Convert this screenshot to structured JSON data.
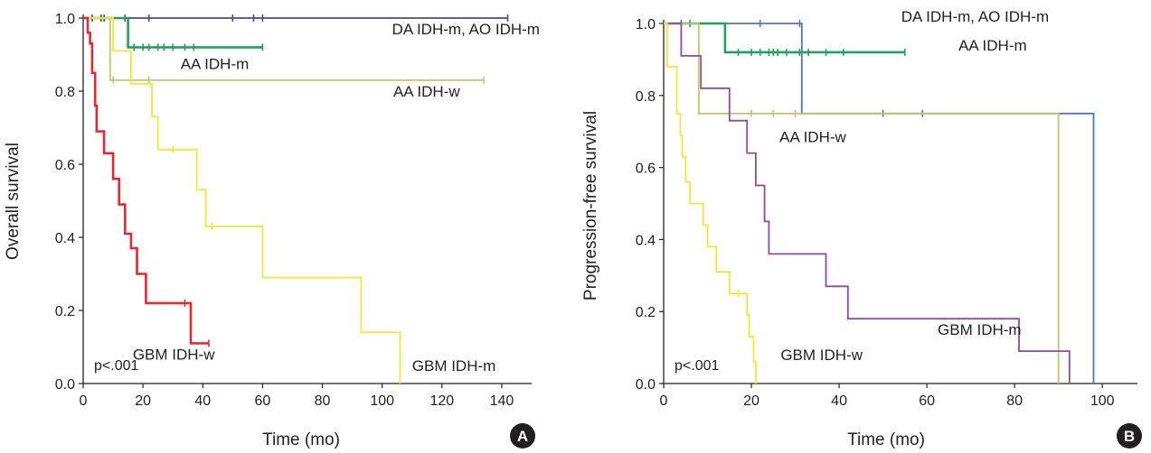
{
  "chart_data": [
    {
      "type": "line",
      "panel_label": "A",
      "xlabel": "Time (mo)",
      "ylabel": "Overall survival",
      "xlim": [
        0,
        150
      ],
      "ylim": [
        0,
        1.0
      ],
      "x_ticks": [
        0,
        20,
        40,
        60,
        80,
        100,
        120,
        140
      ],
      "y_ticks": [
        0.0,
        0.2,
        0.4,
        0.6,
        0.8,
        1.0
      ],
      "annotation": "p<.001",
      "series": [
        {
          "name": "DA IDH-m, AO IDH-m",
          "color": "#5b3f98",
          "steps": [
            [
              0,
              1.0
            ],
            [
              142,
              1.0
            ]
          ],
          "censor": [
            3,
            6,
            7,
            14,
            22,
            50,
            57,
            60,
            142
          ]
        },
        {
          "name": "AA IDH-m",
          "color": "#20a25a",
          "steps": [
            [
              0,
              1.0
            ],
            [
              15,
              1.0
            ],
            [
              15,
              0.92
            ],
            [
              60,
              0.92
            ]
          ],
          "censor": [
            17,
            20,
            22,
            25,
            27,
            30,
            34,
            37,
            60
          ]
        },
        {
          "name": "AA IDH-w",
          "color": "#c3c768",
          "steps": [
            [
              0,
              1.0
            ],
            [
              9,
              1.0
            ],
            [
              9,
              0.83
            ],
            [
              134,
              0.83
            ]
          ],
          "censor": [
            10,
            22,
            134
          ]
        },
        {
          "name": "GBM IDH-m",
          "color": "#f4e53a",
          "steps": [
            [
              0,
              1.0
            ],
            [
              10,
              1.0
            ],
            [
              10,
              0.91
            ],
            [
              16,
              0.91
            ],
            [
              16,
              0.82
            ],
            [
              23,
              0.82
            ],
            [
              23,
              0.73
            ],
            [
              25,
              0.73
            ],
            [
              25,
              0.64
            ],
            [
              38,
              0.64
            ],
            [
              38,
              0.53
            ],
            [
              41,
              0.53
            ],
            [
              41,
              0.43
            ],
            [
              60,
              0.43
            ],
            [
              60,
              0.29
            ],
            [
              93,
              0.29
            ],
            [
              93,
              0.14
            ],
            [
              106,
              0.14
            ],
            [
              106,
              0.0
            ]
          ],
          "censor": [
            30,
            43
          ]
        },
        {
          "name": "GBM IDH-w",
          "color": "#df2b34",
          "steps": [
            [
              0,
              1.0
            ],
            [
              1.5,
              1.0
            ],
            [
              1.5,
              0.96
            ],
            [
              2.3,
              0.96
            ],
            [
              2.3,
              0.93
            ],
            [
              3,
              0.93
            ],
            [
              3,
              0.85
            ],
            [
              4,
              0.85
            ],
            [
              4,
              0.76
            ],
            [
              4.5,
              0.76
            ],
            [
              4.5,
              0.69
            ],
            [
              7,
              0.69
            ],
            [
              7,
              0.63
            ],
            [
              10,
              0.63
            ],
            [
              10,
              0.56
            ],
            [
              12,
              0.56
            ],
            [
              12,
              0.49
            ],
            [
              14,
              0.49
            ],
            [
              14,
              0.41
            ],
            [
              16,
              0.41
            ],
            [
              16,
              0.37
            ],
            [
              18,
              0.37
            ],
            [
              18,
              0.3
            ],
            [
              21,
              0.3
            ],
            [
              21,
              0.22
            ],
            [
              36,
              0.22
            ],
            [
              36,
              0.11
            ],
            [
              42,
              0.11
            ]
          ],
          "censor": [
            34,
            42
          ]
        }
      ],
      "labels": [
        {
          "text": "DA IDH-m, AO IDH-m",
          "series": "DA IDH-m, AO IDH-m",
          "at": [
            128,
            0.955
          ],
          "anchor": "middle"
        },
        {
          "text": "AA IDH-m",
          "series": "AA IDH-m",
          "at": [
            44,
            0.86
          ],
          "anchor": "middle"
        },
        {
          "text": "AA IDH-w",
          "series": "AA IDH-w",
          "at": [
            126,
            0.785
          ],
          "anchor": "end"
        },
        {
          "text": "GBM IDH-w",
          "series": "GBM IDH-w",
          "at": [
            44,
            0.065
          ],
          "anchor": "end"
        },
        {
          "text": "GBM IDH-m",
          "series": "GBM IDH-m",
          "at": [
            138,
            0.035
          ],
          "anchor": "end"
        }
      ]
    },
    {
      "type": "line",
      "panel_label": "B",
      "xlabel": "Time (mo)",
      "ylabel": "Progression-free survival",
      "xlim": [
        0,
        108
      ],
      "ylim": [
        0,
        1.0
      ],
      "x_ticks": [
        0,
        20,
        40,
        60,
        80,
        100
      ],
      "y_ticks": [
        0.0,
        0.2,
        0.4,
        0.6,
        0.8,
        1.0
      ],
      "annotation": "p<.001",
      "series": [
        {
          "name": "DA IDH-m, AO IDH-m",
          "color": "#4e75bf",
          "steps": [
            [
              0,
              1.0
            ],
            [
              31.5,
              1.0
            ],
            [
              31.5,
              0.75
            ],
            [
              98,
              0.75
            ],
            [
              98,
              0.0
            ]
          ],
          "censor": [
            4,
            6,
            22,
            31,
            50,
            59
          ]
        },
        {
          "name": "AA IDH-m",
          "color": "#20a25a",
          "steps": [
            [
              0,
              1.0
            ],
            [
              14,
              1.0
            ],
            [
              14,
              0.92
            ],
            [
              55,
              0.92
            ]
          ],
          "censor": [
            17,
            20,
            22,
            24,
            25,
            26,
            28,
            31,
            33,
            37,
            41,
            55
          ]
        },
        {
          "name": "AA IDH-w",
          "color": "#c3c768",
          "steps": [
            [
              0,
              1.0
            ],
            [
              8,
              1.0
            ],
            [
              8,
              0.75
            ],
            [
              90,
              0.75
            ],
            [
              90,
              0.0
            ]
          ],
          "censor": [
            20,
            25,
            30
          ]
        },
        {
          "name": "GBM IDH-m",
          "color": "#8e4a9e",
          "steps": [
            [
              0,
              1.0
            ],
            [
              4,
              1.0
            ],
            [
              4,
              0.91
            ],
            [
              8.5,
              0.91
            ],
            [
              8.5,
              0.82
            ],
            [
              15,
              0.82
            ],
            [
              15,
              0.73
            ],
            [
              19,
              0.73
            ],
            [
              19,
              0.64
            ],
            [
              21,
              0.64
            ],
            [
              21,
              0.55
            ],
            [
              23,
              0.55
            ],
            [
              23,
              0.45
            ],
            [
              24,
              0.45
            ],
            [
              24,
              0.36
            ],
            [
              37,
              0.36
            ],
            [
              37,
              0.27
            ],
            [
              42,
              0.27
            ],
            [
              42,
              0.18
            ],
            [
              81,
              0.18
            ],
            [
              81,
              0.09
            ],
            [
              92.5,
              0.09
            ],
            [
              92.5,
              0.0
            ]
          ],
          "censor": []
        },
        {
          "name": "GBM IDH-w",
          "color": "#f4e53a",
          "steps": [
            [
              0,
              1.0
            ],
            [
              0.8,
              1.0
            ],
            [
              0.8,
              0.88
            ],
            [
              3,
              0.88
            ],
            [
              3,
              0.75
            ],
            [
              3.8,
              0.75
            ],
            [
              3.8,
              0.69
            ],
            [
              4.2,
              0.69
            ],
            [
              4.2,
              0.63
            ],
            [
              5,
              0.63
            ],
            [
              5,
              0.56
            ],
            [
              6,
              0.56
            ],
            [
              6,
              0.5
            ],
            [
              9,
              0.5
            ],
            [
              9,
              0.44
            ],
            [
              10,
              0.44
            ],
            [
              10,
              0.38
            ],
            [
              12,
              0.38
            ],
            [
              12,
              0.31
            ],
            [
              15,
              0.31
            ],
            [
              15,
              0.25
            ],
            [
              19,
              0.25
            ],
            [
              19,
              0.19
            ],
            [
              19.5,
              0.19
            ],
            [
              19.5,
              0.13
            ],
            [
              20.5,
              0.13
            ],
            [
              20.5,
              0.06
            ],
            [
              21,
              0.06
            ],
            [
              21,
              0.0
            ]
          ],
          "censor": [
            17
          ]
        }
      ],
      "labels": [
        {
          "text": "DA IDH-m, AO IDH-m",
          "series": "DA IDH-m, AO IDH-m",
          "at": [
            71,
            1.005
          ],
          "anchor": "middle"
        },
        {
          "text": "AA IDH-m",
          "series": "AA IDH-m",
          "at": [
            75,
            0.925
          ],
          "anchor": "middle"
        },
        {
          "text": "AA IDH-w",
          "series": "AA IDH-w",
          "at": [
            34,
            0.67
          ],
          "anchor": "middle"
        },
        {
          "text": "GBM IDH-m",
          "series": "GBM IDH-m",
          "at": [
            72,
            0.135
          ],
          "anchor": "middle"
        },
        {
          "text": "GBM IDH-w",
          "series": "GBM IDH-w",
          "at": [
            36,
            0.065
          ],
          "anchor": "middle"
        }
      ]
    }
  ]
}
